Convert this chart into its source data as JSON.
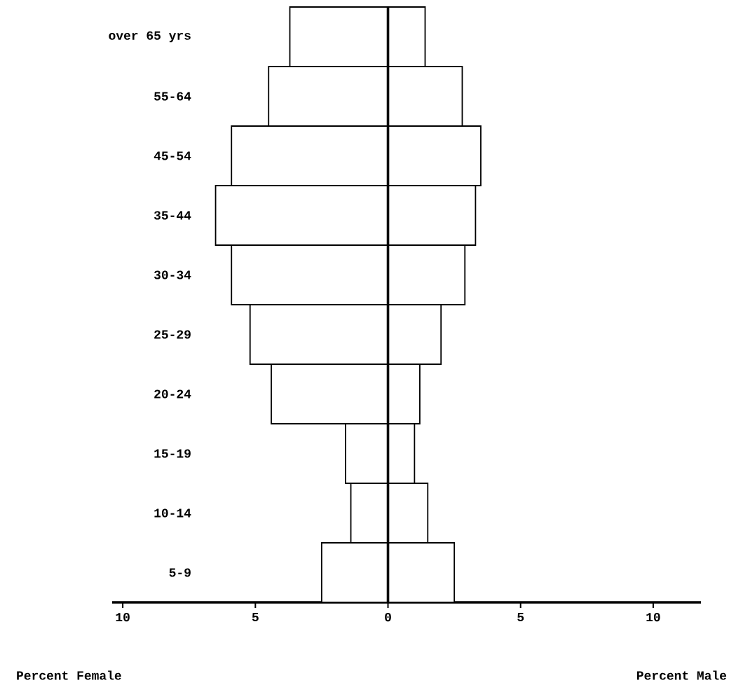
{
  "chart_data": {
    "type": "bar",
    "orientation": "horizontal",
    "categories": [
      "over 65 yrs",
      "55-64",
      "45-54",
      "35-44",
      "30-34",
      "25-29",
      "20-24",
      "15-19",
      "10-14",
      "5-9"
    ],
    "series": [
      {
        "color": "#ffffff",
        "values": [
          -3.7,
          -4.5,
          -5.9,
          -6.5,
          -5.9,
          -5.2,
          -4.4,
          -1.6,
          -1.4,
          -2.5
        ]
      },
      {
        "color": "#ffffff",
        "values": [
          1.4,
          2.8,
          3.5,
          3.3,
          2.9,
          2.0,
          1.2,
          1.0,
          1.5,
          2.5
        ]
      }
    ],
    "xlim": [
      -10.4,
      11.8
    ],
    "xticks": [
      {
        "value": -10,
        "label": "10"
      },
      {
        "value": -5,
        "label": "5"
      },
      0,
      5,
      10
    ],
    "annotations": [
      "Percent Female",
      "Percent Male"
    ],
    "stacked": true
  }
}
